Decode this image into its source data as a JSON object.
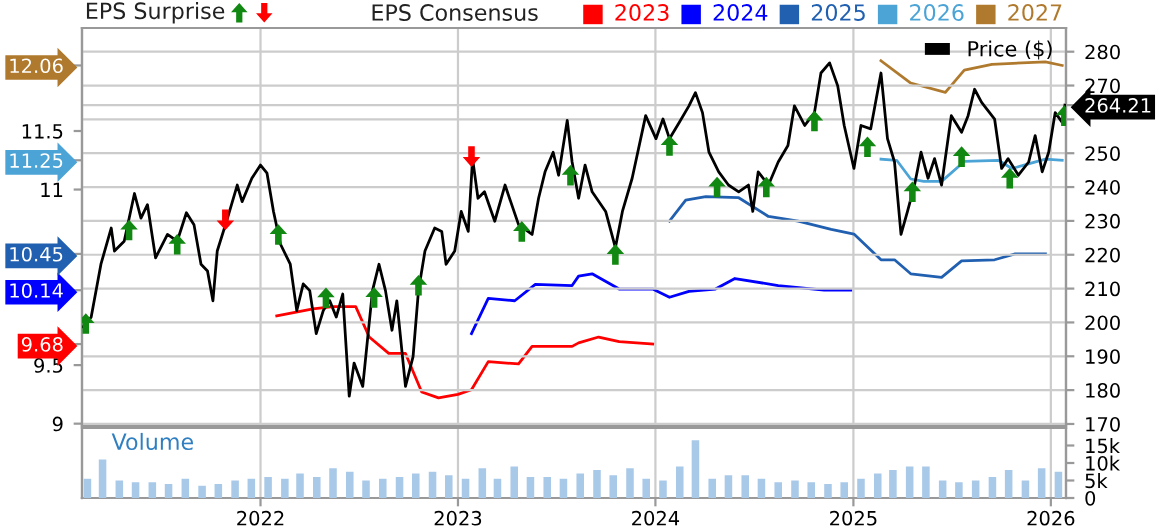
{
  "chart_data": [
    {
      "type": "line",
      "legend_title": "EPS Consensus",
      "legend": "top right",
      "annotations": [
        "EPS Surprise"
      ],
      "grid": true,
      "tick_labels": "y",
      "xlim": [
        "2021-02-05",
        "2026-01-29"
      ],
      "xticks": [
        "2022",
        "2023",
        "2024",
        "2025",
        "2026"
      ],
      "ylim": [
        8.98,
        12.38
      ],
      "yticks": [
        9,
        9.5,
        9.68,
        10.14,
        10.45,
        11,
        11.25,
        11.5,
        12.06
      ],
      "y2lim": [
        169.4,
        287
      ],
      "y2ticks": [
        170,
        180,
        190,
        200,
        210,
        220,
        230,
        240,
        250,
        {
          "value": 260,
          "label": null
        },
        264.21,
        270,
        280
      ],
      "series": [
        {
          "name": "2023",
          "color": "#ff0000",
          "x": [
            "2022-01-31",
            "2022-04-08",
            "2022-05-15",
            "2022-06-26",
            "2022-07-21",
            "2022-08-26",
            "2022-09-26",
            "2022-10-26",
            "2022-11-26",
            "2023-01-01",
            "2023-01-26",
            "2023-02-26",
            "2023-04-23",
            "2023-05-18",
            "2023-07-31",
            "2023-08-12",
            "2023-09-18",
            "2023-10-26",
            "2023-12-27"
          ],
          "values": [
            9.92,
            9.98,
            10.0,
            10.0,
            9.74,
            9.6,
            9.6,
            9.27,
            9.22,
            9.25,
            9.29,
            9.53,
            9.51,
            9.66,
            9.66,
            9.69,
            9.74,
            9.7,
            9.68
          ]
        },
        {
          "name": "2024",
          "color": "#0000ff",
          "x": [
            "2023-01-26",
            "2023-02-26",
            "2023-04-16",
            "2023-05-24",
            "2023-07-31",
            "2023-08-12",
            "2023-09-06",
            "2023-10-26",
            "2023-12-27",
            "2024-01-27",
            "2024-03-03",
            "2024-04-21",
            "2024-05-27",
            "2024-08-15",
            "2024-11-08",
            "2024-12-27"
          ],
          "values": [
            9.77,
            10.07,
            10.05,
            10.19,
            10.18,
            10.26,
            10.28,
            10.15,
            10.15,
            10.08,
            10.13,
            10.15,
            10.24,
            10.18,
            10.14,
            10.14
          ]
        },
        {
          "name": "2025",
          "color": "#2160b0",
          "x": [
            "2024-01-27",
            "2024-02-26",
            "2024-04-03",
            "2024-06-03",
            "2024-07-28",
            "2024-09-21",
            "2024-11-21",
            "2025-01-02",
            "2025-02-21",
            "2025-03-18",
            "2025-04-17",
            "2025-06-13",
            "2025-07-20",
            "2025-09-19",
            "2025-10-27",
            "2025-12-22"
          ],
          "values": [
            10.73,
            10.91,
            10.94,
            10.93,
            10.77,
            10.73,
            10.66,
            10.62,
            10.4,
            10.4,
            10.28,
            10.25,
            10.39,
            10.4,
            10.45,
            10.45
          ]
        },
        {
          "name": "2026",
          "color": "#4ba3d6",
          "x": [
            "2025-02-21",
            "2025-03-22",
            "2025-04-17",
            "2025-05-11",
            "2025-06-13",
            "2025-07-25",
            "2025-09-26",
            "2025-10-21",
            "2025-11-14",
            "2025-12-22",
            "2026-01-22"
          ],
          "values": [
            11.26,
            11.25,
            11.09,
            11.07,
            11.07,
            11.24,
            11.25,
            11.18,
            11.21,
            11.26,
            11.25
          ]
        },
        {
          "name": "2027",
          "color": "#b07a2e",
          "x": [
            "2025-02-21",
            "2025-04-17",
            "2025-06-20",
            "2025-07-25",
            "2025-09-14",
            "2025-12-22",
            "2026-01-22"
          ],
          "values": [
            12.1,
            11.91,
            11.83,
            12.02,
            12.07,
            12.09,
            12.06
          ]
        },
        {
          "name": "Price ($)",
          "color": "#000000",
          "axis": "y2",
          "x": [
            "2021-02-07",
            "2021-02-22",
            "2021-03-12",
            "2021-03-31",
            "2021-04-06",
            "2021-04-24",
            "2021-05-13",
            "2021-05-25",
            "2021-06-06",
            "2021-06-21",
            "2021-07-13",
            "2021-07-31",
            "2021-08-17",
            "2021-08-31",
            "2021-09-13",
            "2021-09-25",
            "2021-10-05",
            "2021-10-13",
            "2021-11-01",
            "2021-11-19",
            "2021-11-28",
            "2021-12-16",
            "2022-01-01",
            "2022-01-13",
            "2022-01-25",
            "2022-02-07",
            "2022-02-25",
            "2022-03-09",
            "2022-03-21",
            "2022-04-02",
            "2022-04-14",
            "2022-04-27",
            "2022-05-09",
            "2022-05-21",
            "2022-06-02",
            "2022-06-14",
            "2022-06-23",
            "2022-07-09",
            "2022-07-27",
            "2022-08-08",
            "2022-08-20",
            "2022-09-01",
            "2022-09-10",
            "2022-09-26",
            "2022-10-10",
            "2022-10-20",
            "2022-11-01",
            "2022-11-19",
            "2022-12-02",
            "2022-12-10",
            "2022-12-26",
            "2023-01-07",
            "2023-01-20",
            "2023-01-28",
            "2023-02-07",
            "2023-02-19",
            "2023-03-10",
            "2023-03-29",
            "2023-04-23",
            "2023-05-18",
            "2023-05-30",
            "2023-06-11",
            "2023-06-26",
            "2023-07-06",
            "2023-07-22",
            "2023-07-31",
            "2023-08-12",
            "2023-08-24",
            "2023-09-06",
            "2023-10-01",
            "2023-10-19",
            "2023-11-01",
            "2023-11-19",
            "2023-12-14",
            "2024-01-02",
            "2024-01-15",
            "2024-01-27",
            "2024-02-14",
            "2024-03-03",
            "2024-03-15",
            "2024-03-28",
            "2024-04-09",
            "2024-04-27",
            "2024-05-15",
            "2024-06-03",
            "2024-06-21",
            "2024-06-29",
            "2024-07-09",
            "2024-07-28",
            "2024-08-15",
            "2024-09-02",
            "2024-09-14",
            "2024-10-03",
            "2024-10-21",
            "2024-11-02",
            "2024-11-18",
            "2024-12-03",
            "2024-12-15",
            "2025-01-02",
            "2025-01-15",
            "2025-02-02",
            "2025-02-21",
            "2025-03-05",
            "2025-03-18",
            "2025-03-30",
            "2025-04-11",
            "2025-04-24",
            "2025-05-06",
            "2025-05-19",
            "2025-05-31",
            "2025-06-13",
            "2025-07-01",
            "2025-07-20",
            "2025-08-01",
            "2025-08-13",
            "2025-08-26",
            "2025-09-19",
            "2025-10-02",
            "2025-10-14",
            "2025-11-02",
            "2025-11-21",
            "2025-12-03",
            "2025-12-16",
            "2025-12-28",
            "2026-01-09",
            "2026-01-22",
            "2026-01-27"
          ],
          "values": [
            198.7,
            201.6,
            217.2,
            227.9,
            221.1,
            224,
            238.1,
            230.8,
            234.8,
            219.1,
            226,
            224,
            232.4,
            228.9,
            217.2,
            215.2,
            206.4,
            221.1,
            230.8,
            240.6,
            235.7,
            242.6,
            246.5,
            244.1,
            232.8,
            223.1,
            217.2,
            203.5,
            211.4,
            209.4,
            196.7,
            203.5,
            206.4,
            201.6,
            208.4,
            178.2,
            188,
            181.1,
            209.4,
            217.2,
            209.4,
            197.7,
            206.4,
            181.1,
            189.9,
            209.4,
            221.1,
            227.9,
            226.9,
            217.2,
            221.1,
            232.8,
            226.9,
            248.4,
            236.7,
            238.6,
            229.9,
            240.6,
            228.9,
            226,
            236.7,
            244.5,
            250.3,
            243.5,
            259.7,
            247.4,
            236.7,
            246.5,
            238.6,
            232.8,
            222.1,
            232.8,
            242.6,
            261.1,
            254.3,
            260.1,
            254.3,
            259.1,
            264,
            267.9,
            262,
            250.3,
            244.5,
            240.6,
            238.6,
            240.6,
            232.8,
            244.5,
            240.6,
            247.4,
            252.3,
            264,
            258.2,
            262,
            273.7,
            276.7,
            269.9,
            258.2,
            245.5,
            258.2,
            257.2,
            273.7,
            254.3,
            247.4,
            226,
            232.8,
            240.6,
            250.3,
            242.6,
            248.4,
            240.6,
            261.1,
            256.2,
            261.1,
            268.9,
            265,
            260.1,
            245.5,
            248.4,
            243.5,
            247.4,
            255.2,
            244.5,
            250.3,
            262,
            259.1,
            264.21
          ]
        },
        {
          "type": "scatter",
          "color": "#118811",
          "axis": "y2",
          "marker": "triangle",
          "x": [
            "2021-02-12",
            "2021-05-03",
            "2021-07-31",
            "2022-02-03",
            "2022-05-02",
            "2022-07-30",
            "2022-10-20",
            "2023-04-29",
            "2023-07-28",
            "2023-10-19",
            "2024-01-27",
            "2024-04-24",
            "2024-07-24",
            "2024-10-21",
            "2025-01-27",
            "2025-04-20",
            "2025-07-20",
            "2025-10-17",
            "2026-01-26"
          ],
          "values": [
            199.7,
            227.3,
            223.1,
            226,
            207.3,
            207.4,
            211,
            226.9,
            243.5,
            220.1,
            252.3,
            240,
            240,
            259.5,
            251.9,
            238.6,
            249,
            242.6,
            261.1
          ]
        },
        {
          "type": "scatter",
          "color": "#ff0000",
          "axis": "y2",
          "marker": "triangle",
          "x": [
            "2021-10-28",
            "2023-01-26"
          ],
          "values": [
            230.3,
            249
          ]
        }
      ]
    },
    {
      "type": "bar",
      "title": "Volume",
      "grid": "x",
      "xlim": [
        "2021-02-05",
        "2026-01-29"
      ],
      "xticks": [
        "2022",
        "2023",
        "2024",
        "2025",
        "2026"
      ],
      "y2lim": [
        0,
        20000
      ],
      "y2ticks": [
        0,
        {
          "value": 5000,
          "label": "5k"
        },
        {
          "value": 10000,
          "label": "10k"
        },
        {
          "value": 15000,
          "label": "15k"
        }
      ],
      "x": [
        "2021-02-15",
        "2021-03-15",
        "2021-04-15",
        "2021-05-15",
        "2021-06-15",
        "2021-07-15",
        "2021-08-15",
        "2021-09-15",
        "2021-10-15",
        "2021-11-15",
        "2021-12-15",
        "2022-01-15",
        "2022-02-15",
        "2022-03-15",
        "2022-04-15",
        "2022-05-15",
        "2022-06-15",
        "2022-07-15",
        "2022-08-15",
        "2022-09-15",
        "2022-10-15",
        "2022-11-15",
        "2022-12-15",
        "2023-01-15",
        "2023-02-15",
        "2023-03-15",
        "2023-04-15",
        "2023-05-15",
        "2023-06-15",
        "2023-07-15",
        "2023-08-15",
        "2023-09-15",
        "2023-10-15",
        "2023-11-15",
        "2023-12-15",
        "2024-01-15",
        "2024-02-15",
        "2024-03-15",
        "2024-04-15",
        "2024-05-15",
        "2024-06-15",
        "2024-07-15",
        "2024-08-15",
        "2024-09-15",
        "2024-10-15",
        "2024-11-15",
        "2024-12-15",
        "2025-01-15",
        "2025-02-15",
        "2025-03-15",
        "2025-04-15",
        "2025-05-15",
        "2025-06-15",
        "2025-07-15",
        "2025-08-15",
        "2025-09-15",
        "2025-10-15",
        "2025-11-15",
        "2025-12-15",
        "2026-01-15"
      ],
      "series": [
        {
          "color": "#a9c9e8",
          "axis": "y2",
          "values": [
            5500,
            11000,
            5000,
            4500,
            4500,
            4000,
            5500,
            3500,
            4000,
            5000,
            5500,
            6000,
            5500,
            7000,
            6000,
            8500,
            7500,
            5000,
            5500,
            6000,
            7000,
            7500,
            6500,
            5500,
            8500,
            5500,
            9000,
            6000,
            6000,
            5500,
            7000,
            8000,
            6500,
            8500,
            5500,
            5000,
            9000,
            16500,
            5500,
            6500,
            6500,
            5500,
            4500,
            5000,
            4500,
            4000,
            4500,
            5500,
            7000,
            8000,
            9000,
            9000,
            5000,
            4500,
            5000,
            6000,
            8000,
            5000,
            8500,
            7500
          ]
        }
      ]
    }
  ]
}
